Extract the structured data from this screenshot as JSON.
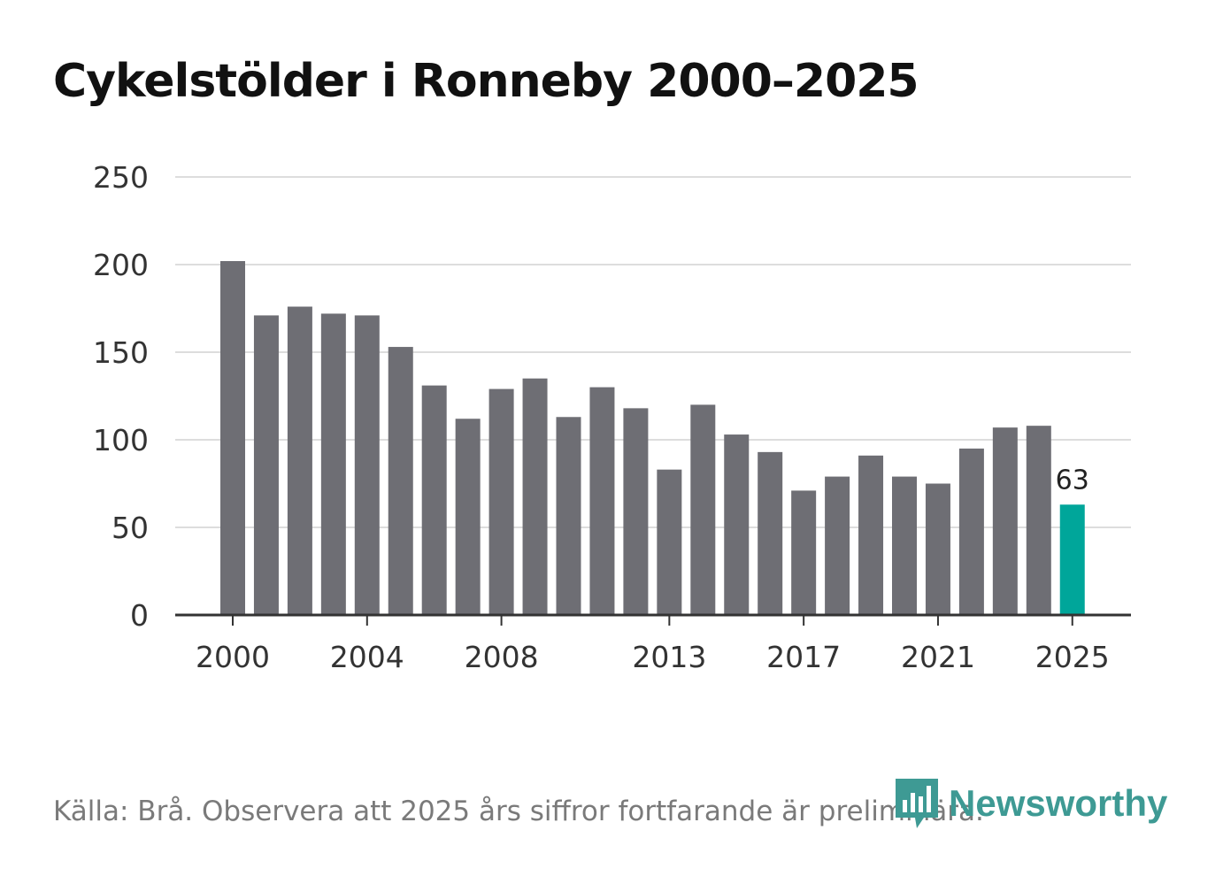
{
  "chart_data": {
    "type": "bar",
    "title": "Cykelstölder i Ronneby 2000–2025",
    "categories": [
      "2000",
      "2001",
      "2002",
      "2003",
      "2004",
      "2005",
      "2006",
      "2007",
      "2008",
      "2009",
      "2010",
      "2011",
      "2012",
      "2013",
      "2014",
      "2015",
      "2016",
      "2017",
      "2018",
      "2019",
      "2020",
      "2021",
      "2022",
      "2023",
      "2024",
      "2025"
    ],
    "values": [
      202,
      171,
      176,
      172,
      171,
      153,
      131,
      112,
      129,
      135,
      113,
      130,
      118,
      83,
      120,
      103,
      93,
      71,
      79,
      91,
      79,
      75,
      95,
      107,
      108,
      63
    ],
    "x_tick_labels": [
      "2000",
      "2004",
      "2008",
      "2013",
      "2017",
      "2021",
      "2025"
    ],
    "y_ticks": [
      0,
      50,
      100,
      150,
      200,
      250
    ],
    "ylim": [
      0,
      250
    ],
    "highlight_category": "2025",
    "highlight_label": "63",
    "bar_color": "#6e6e74",
    "highlight_color": "#00a69a",
    "xlabel": "",
    "ylabel": ""
  },
  "source": "Källa: Brå. Observera att 2025 års siffror fortfarande är preliminära.",
  "brand": {
    "name": "Newsworthy",
    "color": "#3e9a94"
  }
}
